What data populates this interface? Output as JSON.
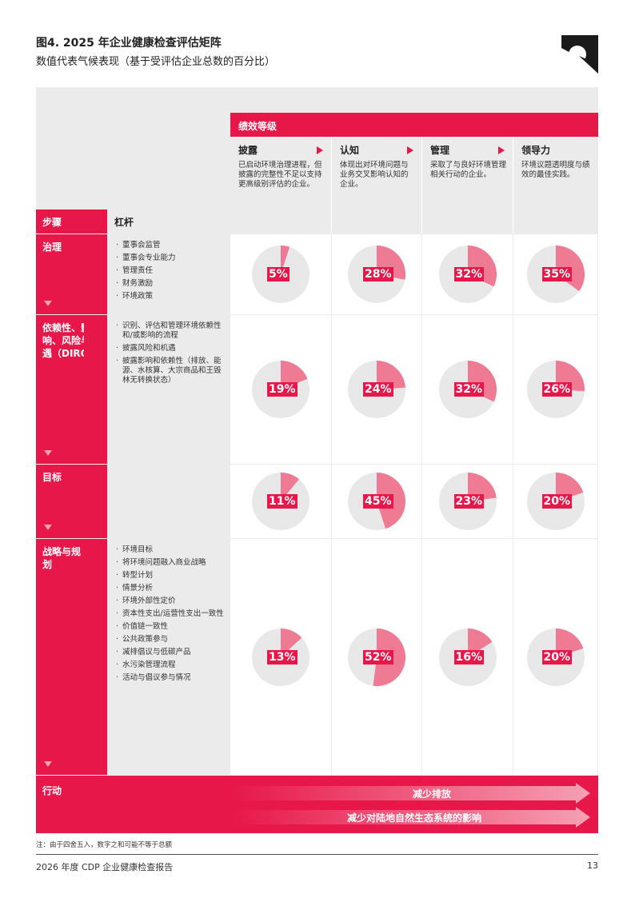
{
  "title": "图4. 2025 年企业健康检查评估矩阵",
  "subtitle": "数值代表气候表现（基于受评估企业总数的百分比）",
  "performance_header": "绩效等级",
  "levels": [
    {
      "title": "披露",
      "desc": "已启动环境治理进程，但披露的完整性不足以支持更高级别评估的企业。"
    },
    {
      "title": "认知",
      "desc": "体现出对环境问题与业务交叉影响认知的企业。"
    },
    {
      "title": "管理",
      "desc": "采取了与良好环境管理相关行动的企业。"
    },
    {
      "title": "领导力",
      "desc": "环境议题透明度与绩效的最佳实践。"
    }
  ],
  "headers": {
    "steps": "步骤",
    "lever": "杠杆"
  },
  "rows": [
    {
      "label": "治理",
      "levers": [
        "董事会监管",
        "董事会专业能力",
        "管理责任",
        "财务激励",
        "环境政策"
      ],
      "values": [
        "5%",
        "28%",
        "32%",
        "35%"
      ],
      "numbers": [
        5,
        28,
        32,
        35
      ]
    },
    {
      "label": "依赖性、影响、风险与机遇（DIRO）",
      "levers": [
        "识别、评估和管理环境依赖性和/或影响的流程",
        "披露风险和机遇",
        "披露影响和依赖性（排放、能源、水核算、大宗商品和王毁林无转换状态）"
      ],
      "values": [
        "19%",
        "24%",
        "32%",
        "26%"
      ],
      "numbers": [
        19,
        24,
        32,
        26
      ]
    },
    {
      "label": "目标",
      "levers": [],
      "values": [
        "11%",
        "45%",
        "23%",
        "20%"
      ],
      "numbers": [
        11,
        45,
        23,
        20
      ]
    },
    {
      "label": "战略与规划",
      "levers": [
        "环境目标",
        "将环境问题融入商业战略",
        "转型计划",
        "情景分析",
        "环境外部性定价",
        "资本性支出/运营性支出一致性",
        "价值链一致性",
        "公共政策参与",
        "减排倡议与低碳产品",
        "水污染管理流程",
        "活动与倡议参与情况"
      ],
      "values": [
        "13%",
        "52%",
        "16%",
        "20%"
      ],
      "numbers": [
        13,
        52,
        16,
        20
      ]
    }
  ],
  "action": {
    "label": "行动",
    "arrows": [
      "减少排放",
      "减少对陆地自然生态系统的影响"
    ]
  },
  "note": "注：由于四舍五入，数字之和可能不等于总额",
  "footer": "2026 年度 CDP 企业健康检查报告",
  "page_number": "13",
  "colors": {
    "accent": "#e8174a",
    "pie_fill": "#ef7a93",
    "pie_bg": "#e8e8e8",
    "panel": "#ebebeb"
  }
}
